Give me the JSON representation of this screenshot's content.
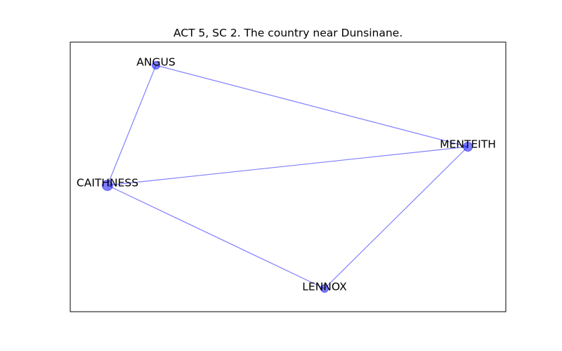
{
  "title": "ACT 5, SC 2. The country near Dunsinane.",
  "colors": {
    "edge": "#0000ff",
    "node": "#0000ff",
    "frame": "#000000",
    "background": "#ffffff"
  },
  "nodes": [
    {
      "id": "angus",
      "label": "ANGUS",
      "size": "small"
    },
    {
      "id": "menteith",
      "label": "MENTEITH",
      "size": "medium"
    },
    {
      "id": "caithness",
      "label": "CAITHNESS",
      "size": "large"
    },
    {
      "id": "lennox",
      "label": "LENNOX",
      "size": "small"
    }
  ],
  "edges": [
    {
      "source": "angus",
      "target": "menteith"
    },
    {
      "source": "angus",
      "target": "caithness"
    },
    {
      "source": "caithness",
      "target": "menteith"
    },
    {
      "source": "caithness",
      "target": "lennox"
    },
    {
      "source": "lennox",
      "target": "menteith"
    }
  ]
}
